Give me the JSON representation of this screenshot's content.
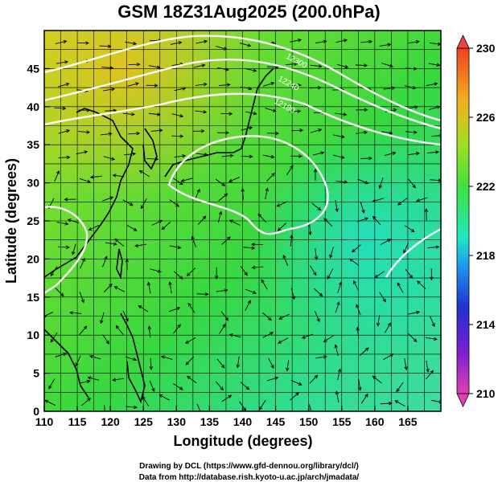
{
  "title": "GSM 18Z31Aug2025 (200.0hPa)",
  "x_axis": {
    "label": "Longitude (degrees)",
    "min": 110,
    "max": 170,
    "ticks": [
      "110",
      "115",
      "120",
      "125",
      "130",
      "135",
      "140",
      "145",
      "150",
      "155",
      "160",
      "165"
    ]
  },
  "y_axis": {
    "label": "Latitude  (degrees)",
    "min": 0,
    "max": 50,
    "ticks": [
      "0",
      "5",
      "10",
      "15",
      "20",
      "25",
      "30",
      "35",
      "40",
      "45"
    ]
  },
  "colorbar": {
    "min": 210,
    "max": 230,
    "ticks": [
      "210",
      "214",
      "218",
      "222",
      "226",
      "230"
    ],
    "colors": [
      "#e040b0",
      "#7a20d0",
      "#2030d0",
      "#20a0f0",
      "#20e8c0",
      "#40e040",
      "#a0e020",
      "#f0b020",
      "#f04020"
    ]
  },
  "contour_labels": [
    "12300",
    "12240",
    "12180"
  ],
  "credits": {
    "line1": "Drawing by DCL (https://www.gfd-dennou.org/library/dcl/)",
    "line2": "Data from http://database.rish.kyoto-u.ac.jp/arch/jmadata/"
  }
}
